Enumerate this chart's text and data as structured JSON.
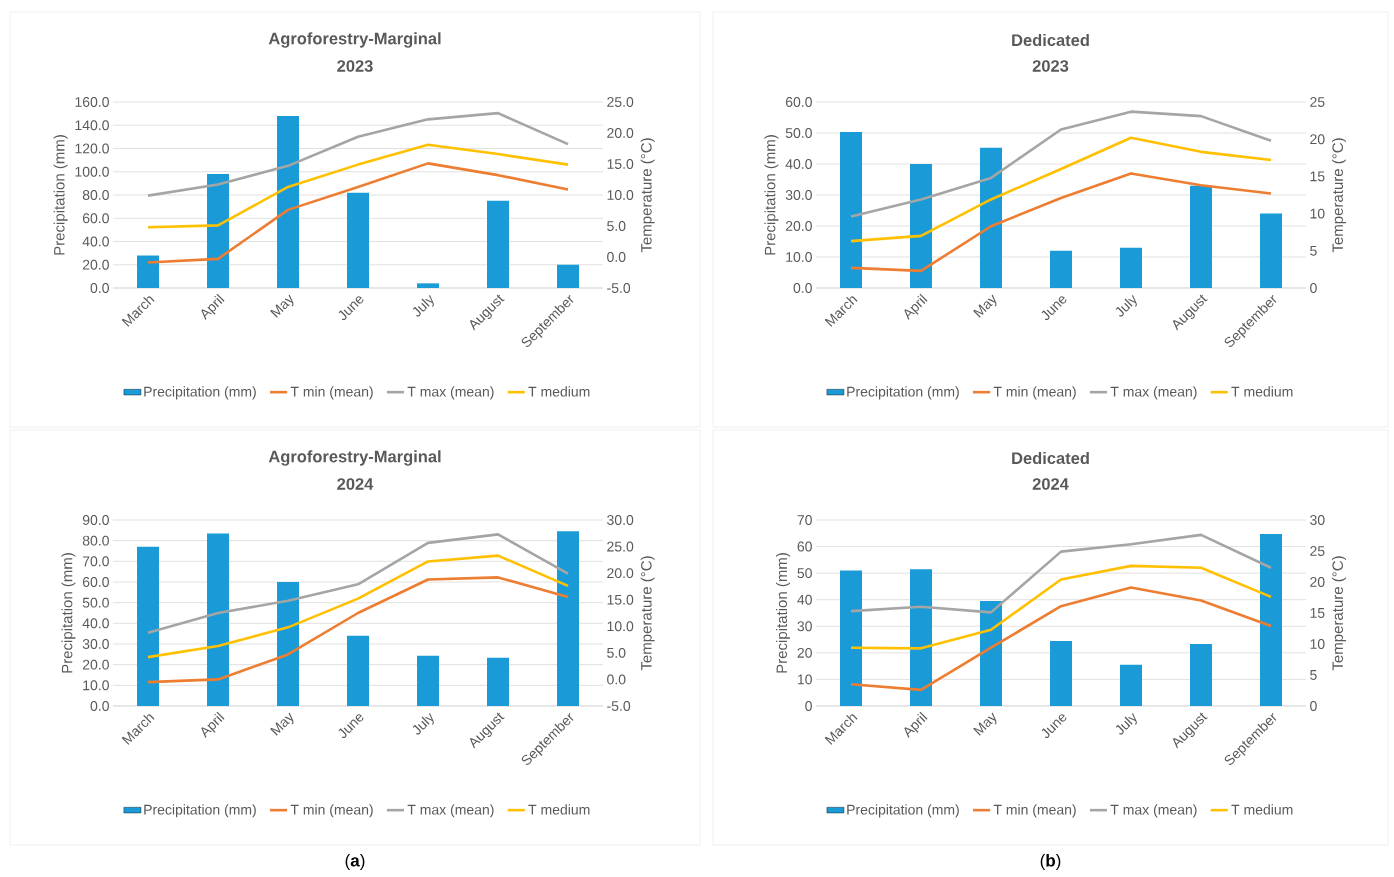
{
  "chart_data": [
    {
      "type": "bar",
      "title": "Agroforestry-Marginal",
      "subtitle": "2023",
      "ylabel": "Precipitation (mm)",
      "y2label": "Temperature (°C)",
      "categories": [
        "March",
        "April",
        "May",
        "June",
        "July",
        "August",
        "September"
      ],
      "series": [
        {
          "name": "Precipitation (mm)",
          "color": "#1a9bd7",
          "values": [
            28,
            98,
            148,
            82,
            4,
            75,
            20
          ]
        },
        {
          "name": "T min (mean)",
          "type": "line",
          "axis": "y2",
          "color": "#ed7d31",
          "values": [
            -0.9,
            -0.3,
            7.6,
            11.3,
            15.1,
            13.2,
            10.9
          ]
        },
        {
          "name": "T max (mean)",
          "type": "line",
          "axis": "y2",
          "color": "#a5a5a5",
          "values": [
            9.9,
            11.7,
            14.7,
            19.4,
            22.2,
            23.2,
            18.2
          ]
        },
        {
          "name": "T medium",
          "type": "line",
          "axis": "y2",
          "color": "#ffc000",
          "values": [
            4.8,
            5.1,
            11.3,
            14.9,
            18.1,
            16.6,
            14.9
          ]
        }
      ],
      "ylim": [
        0,
        160
      ],
      "yticks": [
        {
          "value": 0,
          "label": "0.0"
        },
        {
          "value": 20,
          "label": "20.0"
        },
        {
          "value": 40,
          "label": "40.0"
        },
        {
          "value": 60,
          "label": "60.0"
        },
        {
          "value": 80,
          "label": "80.0"
        },
        {
          "value": 100,
          "label": "100.0"
        },
        {
          "value": 120,
          "label": "120.0"
        },
        {
          "value": 140,
          "label": "140.0"
        },
        {
          "value": 160,
          "label": "160.0"
        }
      ],
      "y2lim": [
        -5,
        25
      ],
      "y2ticks": [
        {
          "value": -5,
          "label": "-5.0"
        },
        {
          "value": 0,
          "label": "0.0"
        },
        {
          "value": 5,
          "label": "5.0"
        },
        {
          "value": 10,
          "label": "10.0"
        },
        {
          "value": 15,
          "label": "15.0"
        },
        {
          "value": 20,
          "label": "20.0"
        },
        {
          "value": 25,
          "label": "25.0"
        }
      ],
      "grid": "y",
      "legend": "bottom",
      "marker": "none",
      "line_style": "solid"
    },
    {
      "type": "bar",
      "title": "Dedicated",
      "subtitle": "2023",
      "ylabel": "Precipitation (mm)",
      "y2label": "Temperature (°C)",
      "categories": [
        "March",
        "April",
        "May",
        "June",
        "July",
        "August",
        "September"
      ],
      "series": [
        {
          "name": "Precipitation (mm)",
          "color": "#1a9bd7",
          "values": [
            50.3,
            40,
            45.2,
            12,
            13,
            33,
            24
          ]
        },
        {
          "name": "T min (mean)",
          "type": "line",
          "axis": "y2",
          "color": "#ed7d31",
          "values": [
            2.7,
            2.3,
            8.3,
            12.1,
            15.4,
            13.8,
            12.7
          ]
        },
        {
          "name": "T max (mean)",
          "type": "line",
          "axis": "y2",
          "color": "#a5a5a5",
          "values": [
            9.6,
            11.9,
            14.8,
            21.3,
            23.7,
            23.1,
            19.8
          ]
        },
        {
          "name": "T medium",
          "type": "line",
          "axis": "y2",
          "color": "#ffc000",
          "values": [
            6.3,
            7.0,
            11.9,
            16.0,
            20.2,
            18.3,
            17.2
          ]
        }
      ],
      "ylim": [
        0,
        60
      ],
      "yticks": [
        {
          "value": 0,
          "label": "0.0"
        },
        {
          "value": 10,
          "label": "10.0"
        },
        {
          "value": 20,
          "label": "20.0"
        },
        {
          "value": 30,
          "label": "30.0"
        },
        {
          "value": 40,
          "label": "40.0"
        },
        {
          "value": 50,
          "label": "50.0"
        },
        {
          "value": 60,
          "label": "60.0"
        }
      ],
      "y2lim": [
        0,
        25
      ],
      "y2ticks": [
        0,
        5,
        10,
        15,
        20,
        25
      ],
      "grid": "y",
      "legend": "bottom",
      "marker": "none",
      "line_style": "solid"
    },
    {
      "type": "bar",
      "title": "Agroforestry-Marginal",
      "subtitle": "2024",
      "ylabel": "Precipitation (mm)",
      "y2label": "Temperature (°C)",
      "categories": [
        "March",
        "April",
        "May",
        "June",
        "July",
        "August",
        "September"
      ],
      "series": [
        {
          "name": "Precipitation (mm)",
          "color": "#1a9bd7",
          "values": [
            77,
            83.5,
            60,
            34,
            24.3,
            23.3,
            84.5
          ]
        },
        {
          "name": "T min (mean)",
          "type": "line",
          "axis": "y2",
          "color": "#ed7d31",
          "values": [
            -0.5,
            0.0,
            4.7,
            12.5,
            18.8,
            19.2,
            15.5
          ]
        },
        {
          "name": "T max (mean)",
          "type": "line",
          "axis": "y2",
          "color": "#a5a5a5",
          "values": [
            8.8,
            12.5,
            14.8,
            17.9,
            25.7,
            27.3,
            19.9
          ]
        },
        {
          "name": "T medium",
          "type": "line",
          "axis": "y2",
          "color": "#ffc000",
          "values": [
            4.2,
            6.3,
            9.8,
            15.2,
            22.2,
            23.3,
            17.6
          ]
        }
      ],
      "ylim": [
        0,
        90
      ],
      "yticks": [
        {
          "value": 0,
          "label": "0.0"
        },
        {
          "value": 10,
          "label": "10.0"
        },
        {
          "value": 20,
          "label": "20.0"
        },
        {
          "value": 30,
          "label": "30.0"
        },
        {
          "value": 40,
          "label": "40.0"
        },
        {
          "value": 50,
          "label": "50.0"
        },
        {
          "value": 60,
          "label": "60.0"
        },
        {
          "value": 70,
          "label": "70.0"
        },
        {
          "value": 80,
          "label": "80.0"
        },
        {
          "value": 90,
          "label": "90.0"
        }
      ],
      "y2lim": [
        -5,
        30
      ],
      "y2ticks": [
        {
          "value": -5,
          "label": "-5.0"
        },
        {
          "value": 0,
          "label": "0.0"
        },
        {
          "value": 5,
          "label": "5.0"
        },
        {
          "value": 10,
          "label": "10.0"
        },
        {
          "value": 15,
          "label": "15.0"
        },
        {
          "value": 20,
          "label": "20.0"
        },
        {
          "value": 25,
          "label": "25.0"
        },
        {
          "value": 30,
          "label": "30.0"
        }
      ],
      "grid": "y",
      "legend": "bottom",
      "marker": "none",
      "line_style": "solid",
      "annotations": [
        "(**a**)"
      ]
    },
    {
      "type": "bar",
      "title": "Dedicated",
      "subtitle": "2024",
      "ylabel": "Precipitation (mm)",
      "y2label": "Temperature (°C)",
      "categories": [
        "March",
        "April",
        "May",
        "June",
        "July",
        "August",
        "September"
      ],
      "series": [
        {
          "name": "Precipitation (mm)",
          "color": "#1a9bd7",
          "values": [
            51,
            51.5,
            39.5,
            24.5,
            15.5,
            23.3,
            64.7
          ]
        },
        {
          "name": "T min (mean)",
          "type": "line",
          "axis": "y2",
          "color": "#ed7d31",
          "values": [
            3.5,
            2.6,
            9.4,
            16.1,
            19.1,
            17.0,
            12.9
          ]
        },
        {
          "name": "T max (mean)",
          "type": "line",
          "axis": "y2",
          "color": "#a5a5a5",
          "values": [
            15.3,
            16.0,
            15.1,
            24.9,
            26.1,
            27.6,
            22.3
          ]
        },
        {
          "name": "T medium",
          "type": "line",
          "axis": "y2",
          "color": "#ffc000",
          "values": [
            9.4,
            9.3,
            12.3,
            20.4,
            22.6,
            22.3,
            17.6
          ]
        }
      ],
      "ylim": [
        0,
        70
      ],
      "yticks": [
        0,
        10,
        20,
        30,
        40,
        50,
        60,
        70
      ],
      "y2lim": [
        0,
        30
      ],
      "y2ticks": [
        0,
        5,
        10,
        15,
        20,
        25,
        30
      ],
      "grid": "y",
      "legend": "bottom",
      "marker": "none",
      "line_style": "solid",
      "annotations": [
        "(**b**)"
      ]
    }
  ]
}
